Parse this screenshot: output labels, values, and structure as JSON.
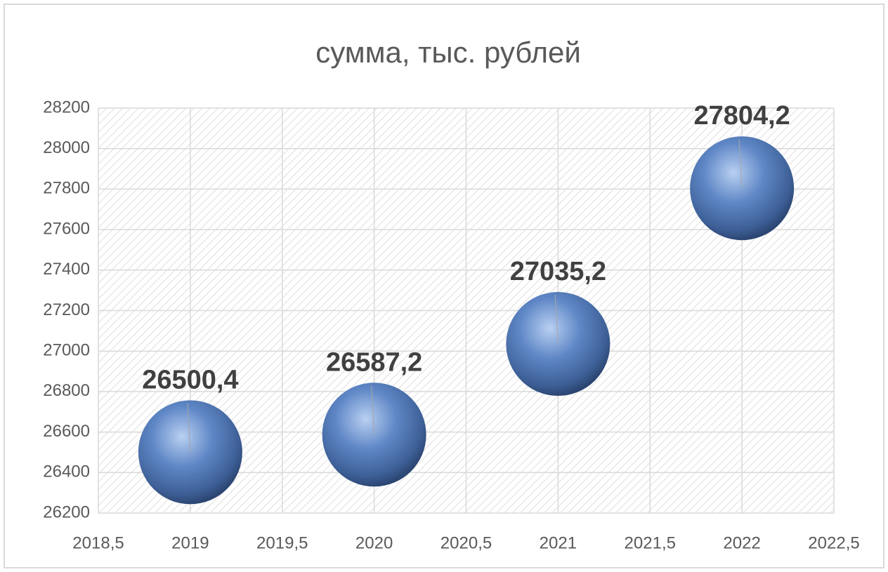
{
  "chart_data": {
    "type": "scatter",
    "title": "сумма, тыс. рублей",
    "x": [
      2019,
      2020,
      2021,
      2022
    ],
    "values": [
      26500.4,
      26587.2,
      27035.2,
      27804.2
    ],
    "value_labels": [
      "26500,4",
      "26587,2",
      "27035,2",
      "27804,2"
    ],
    "color": "#4f78b8",
    "xlim": [
      2018.5,
      2022.5
    ],
    "xticks": [
      {
        "value": 2018.5,
        "label": "2018,5"
      },
      2019,
      {
        "value": 2019.5,
        "label": "2019,5"
      },
      2020,
      {
        "value": 2020.5,
        "label": "2020,5"
      },
      2021,
      {
        "value": 2021.5,
        "label": "2021,5"
      },
      2022,
      {
        "value": 2022.5,
        "label": "2022,5"
      }
    ],
    "ylim": [
      26200,
      28200
    ],
    "yticks": [
      26200,
      26400,
      26600,
      26800,
      27000,
      27200,
      27400,
      27600,
      27800,
      28000,
      28200
    ],
    "grid": true
  }
}
